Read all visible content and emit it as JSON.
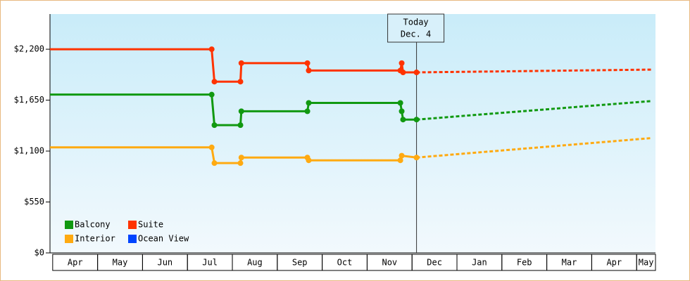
{
  "chart_data": {
    "type": "line",
    "xlim": [
      -0.06,
      13.42
    ],
    "xticks": [
      {
        "value": 0.5,
        "label": "Apr"
      },
      {
        "value": 1.5,
        "label": "May"
      },
      {
        "value": 2.5,
        "label": "Jun"
      },
      {
        "value": 3.5,
        "label": "Jul"
      },
      {
        "value": 4.5,
        "label": "Aug"
      },
      {
        "value": 5.5,
        "label": "Sep"
      },
      {
        "value": 6.5,
        "label": "Oct"
      },
      {
        "value": 7.5,
        "label": "Nov"
      },
      {
        "value": 8.5,
        "label": "Dec"
      },
      {
        "value": 9.5,
        "label": "Jan"
      },
      {
        "value": 10.5,
        "label": "Feb"
      },
      {
        "value": 11.5,
        "label": "Mar"
      },
      {
        "value": 12.5,
        "label": "Apr"
      },
      {
        "value": 13.5,
        "label": "May"
      }
    ],
    "ylim": [
      0,
      2580
    ],
    "yticks": [
      {
        "value": 0,
        "label": "$0"
      },
      {
        "value": 550,
        "label": "$550"
      },
      {
        "value": 1100,
        "label": "$1,100"
      },
      {
        "value": 1650,
        "label": "$1,650"
      },
      {
        "value": 2200,
        "label": "$2,200"
      }
    ],
    "today": {
      "x": 8.1,
      "label": [
        "Today",
        "Dec. 4"
      ]
    },
    "legend": "lower left",
    "series": [
      {
        "name": "Balcony",
        "color": "#119911",
        "x": [
          -0.06,
          3.54,
          3.6,
          4.18,
          4.2,
          5.67,
          5.7,
          7.74,
          7.77,
          7.8,
          8.1
        ],
        "values": [
          1710,
          1710,
          1380,
          1380,
          1530,
          1530,
          1620,
          1620,
          1530,
          1440,
          1440
        ],
        "forecast": {
          "x": [
            8.1,
            13.32
          ],
          "values": [
            1440,
            1640
          ]
        }
      },
      {
        "name": "Suite",
        "color": "#ff3300",
        "x": [
          -0.06,
          3.54,
          3.6,
          4.18,
          4.2,
          5.67,
          5.7,
          7.74,
          7.77,
          7.8,
          8.1
        ],
        "values": [
          2200,
          2200,
          1850,
          1850,
          2050,
          2050,
          1970,
          1970,
          2050,
          1950,
          1950
        ],
        "forecast": {
          "x": [
            8.1,
            13.32
          ],
          "values": [
            1950,
            1980
          ]
        }
      },
      {
        "name": "Interior",
        "color": "#ffaa11",
        "x": [
          -0.06,
          3.54,
          3.6,
          4.18,
          4.2,
          5.67,
          5.7,
          7.74,
          7.77,
          8.1
        ],
        "values": [
          1140,
          1140,
          970,
          970,
          1030,
          1030,
          1000,
          1000,
          1050,
          1030
        ],
        "forecast": {
          "x": [
            8.1,
            13.32
          ],
          "values": [
            1030,
            1240
          ]
        }
      },
      {
        "name": "Ocean View",
        "color": "#0044ff",
        "x": [],
        "values": [],
        "forecast": {
          "x": [],
          "values": []
        }
      }
    ]
  }
}
